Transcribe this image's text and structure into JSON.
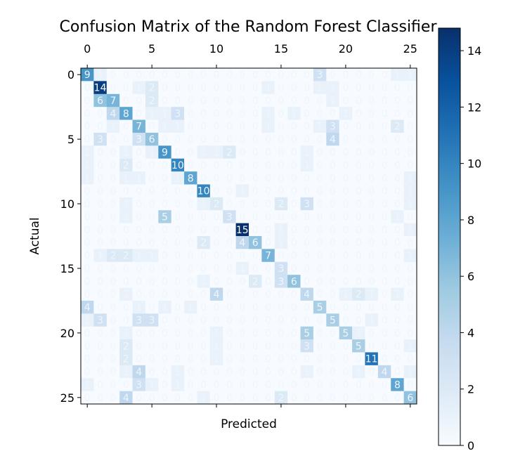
{
  "chart_data": {
    "type": "heatmap",
    "title": "Confusion Matrix of the Random Forest Classifier",
    "xlabel": "Predicted",
    "ylabel": "Actual",
    "n_classes": 26,
    "x_ticks": [
      0,
      5,
      10,
      15,
      20,
      25
    ],
    "y_ticks": [
      0,
      5,
      10,
      15,
      20,
      25
    ],
    "colormap": "Blues",
    "colorbar": {
      "min": 0,
      "max": 14.8,
      "ticks": [
        0,
        2,
        4,
        6,
        8,
        10,
        12,
        14
      ]
    },
    "cells": [
      [
        0,
        0,
        9
      ],
      [
        0,
        1,
        1
      ],
      [
        0,
        18,
        3
      ],
      [
        0,
        24,
        1
      ],
      [
        0,
        25,
        1
      ],
      [
        1,
        1,
        14
      ],
      [
        1,
        4,
        1
      ],
      [
        1,
        5,
        2
      ],
      [
        1,
        14,
        1
      ],
      [
        1,
        18,
        1
      ],
      [
        1,
        19,
        1
      ],
      [
        2,
        1,
        6
      ],
      [
        2,
        2,
        7
      ],
      [
        2,
        5,
        2
      ],
      [
        2,
        19,
        1
      ],
      [
        3,
        2,
        4
      ],
      [
        3,
        3,
        8
      ],
      [
        3,
        5,
        1
      ],
      [
        3,
        6,
        1
      ],
      [
        3,
        7,
        3
      ],
      [
        3,
        14,
        1
      ],
      [
        3,
        16,
        1
      ],
      [
        3,
        20,
        1
      ],
      [
        4,
        2,
        1
      ],
      [
        4,
        4,
        7
      ],
      [
        4,
        6,
        1
      ],
      [
        4,
        7,
        1
      ],
      [
        4,
        14,
        1
      ],
      [
        4,
        18,
        1
      ],
      [
        4,
        19,
        3
      ],
      [
        4,
        24,
        2
      ],
      [
        5,
        1,
        3
      ],
      [
        5,
        4,
        3
      ],
      [
        5,
        5,
        6
      ],
      [
        5,
        19,
        4
      ],
      [
        6,
        0,
        1
      ],
      [
        6,
        3,
        1
      ],
      [
        6,
        5,
        1
      ],
      [
        6,
        6,
        9
      ],
      [
        6,
        9,
        1
      ],
      [
        6,
        10,
        1
      ],
      [
        6,
        11,
        2
      ],
      [
        6,
        17,
        1
      ],
      [
        7,
        0,
        1
      ],
      [
        7,
        3,
        2
      ],
      [
        7,
        7,
        10
      ],
      [
        7,
        17,
        1
      ],
      [
        8,
        0,
        1
      ],
      [
        8,
        3,
        1
      ],
      [
        8,
        4,
        1
      ],
      [
        8,
        7,
        1
      ],
      [
        8,
        8,
        8
      ],
      [
        8,
        25,
        1
      ],
      [
        9,
        9,
        10
      ],
      [
        9,
        12,
        1
      ],
      [
        9,
        25,
        1
      ],
      [
        10,
        3,
        1
      ],
      [
        10,
        9,
        1
      ],
      [
        10,
        10,
        2
      ],
      [
        10,
        15,
        2
      ],
      [
        10,
        17,
        3
      ],
      [
        10,
        25,
        1
      ],
      [
        11,
        3,
        1
      ],
      [
        11,
        6,
        5
      ],
      [
        11,
        11,
        3
      ],
      [
        11,
        24,
        1
      ],
      [
        12,
        12,
        15
      ],
      [
        12,
        15,
        1
      ],
      [
        12,
        25,
        1
      ],
      [
        13,
        9,
        2
      ],
      [
        13,
        12,
        4
      ],
      [
        13,
        13,
        6
      ],
      [
        13,
        15,
        1
      ],
      [
        14,
        1,
        1
      ],
      [
        14,
        2,
        2
      ],
      [
        14,
        3,
        2
      ],
      [
        14,
        4,
        1
      ],
      [
        14,
        5,
        1
      ],
      [
        14,
        14,
        7
      ],
      [
        14,
        25,
        1
      ],
      [
        15,
        12,
        1
      ],
      [
        15,
        15,
        3
      ],
      [
        16,
        9,
        1
      ],
      [
        16,
        13,
        2
      ],
      [
        16,
        15,
        3
      ],
      [
        16,
        16,
        6
      ],
      [
        17,
        3,
        1
      ],
      [
        17,
        10,
        4
      ],
      [
        17,
        17,
        4
      ],
      [
        17,
        20,
        1
      ],
      [
        17,
        21,
        2
      ],
      [
        17,
        22,
        1
      ],
      [
        17,
        24,
        1
      ],
      [
        18,
        0,
        4
      ],
      [
        18,
        4,
        1
      ],
      [
        18,
        6,
        1
      ],
      [
        18,
        8,
        1
      ],
      [
        18,
        18,
        5
      ],
      [
        19,
        0,
        1
      ],
      [
        19,
        1,
        3
      ],
      [
        19,
        4,
        3
      ],
      [
        19,
        5,
        3
      ],
      [
        19,
        19,
        5
      ],
      [
        19,
        22,
        1
      ],
      [
        20,
        3,
        1
      ],
      [
        20,
        10,
        1
      ],
      [
        20,
        17,
        5
      ],
      [
        20,
        20,
        5
      ],
      [
        20,
        21,
        1
      ],
      [
        21,
        3,
        2
      ],
      [
        21,
        10,
        1
      ],
      [
        21,
        17,
        3
      ],
      [
        21,
        21,
        5
      ],
      [
        21,
        25,
        1
      ],
      [
        22,
        3,
        2
      ],
      [
        22,
        10,
        1
      ],
      [
        22,
        22,
        11
      ],
      [
        23,
        3,
        1
      ],
      [
        23,
        4,
        4
      ],
      [
        23,
        7,
        1
      ],
      [
        23,
        17,
        1
      ],
      [
        23,
        21,
        1
      ],
      [
        23,
        23,
        4
      ],
      [
        23,
        25,
        1
      ],
      [
        24,
        0,
        1
      ],
      [
        24,
        4,
        3
      ],
      [
        24,
        5,
        1
      ],
      [
        24,
        7,
        1
      ],
      [
        24,
        24,
        8
      ],
      [
        25,
        3,
        4
      ],
      [
        25,
        9,
        1
      ],
      [
        25,
        15,
        2
      ],
      [
        25,
        25,
        6
      ]
    ]
  }
}
